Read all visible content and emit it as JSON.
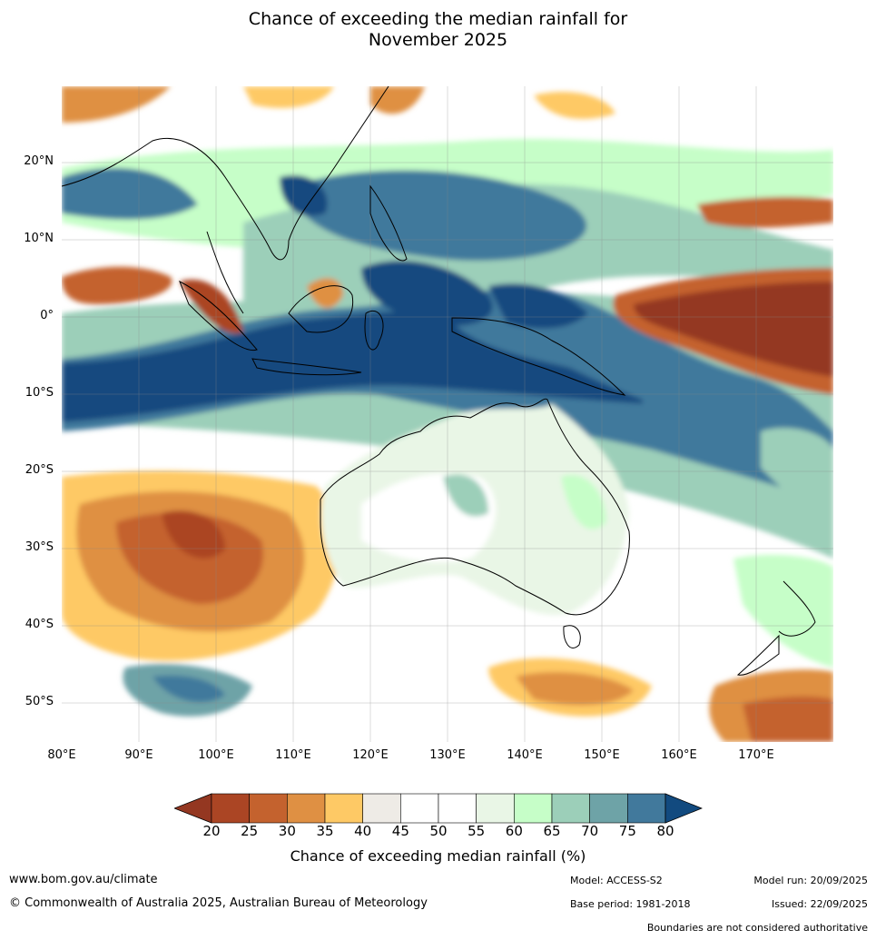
{
  "title_line1": "Chance of exceeding the median rainfall for",
  "title_line2": "November 2025",
  "lat_labels": [
    "20°N",
    "10°N",
    "0°",
    "10°S",
    "20°S",
    "30°S",
    "40°S",
    "50°S"
  ],
  "lon_labels": [
    "80°E",
    "90°E",
    "100°E",
    "110°E",
    "120°E",
    "130°E",
    "140°E",
    "150°E",
    "160°E",
    "170°E"
  ],
  "colorbar": {
    "ticks": [
      "20",
      "25",
      "30",
      "35",
      "40",
      "45",
      "50",
      "55",
      "60",
      "65",
      "70",
      "75",
      "80"
    ],
    "colors": [
      "#ab4524",
      "#c4622e",
      "#df9043",
      "#fec965",
      "#eeebe6",
      "#ffffff",
      "#ffffff",
      "#e9f6e6",
      "#c6fec8",
      "#9ccfb9",
      "#6ea3a7",
      "#41799c"
    ],
    "under_color": "#943721",
    "over_color": "#124a7f",
    "label": "Chance of exceeding median rainfall (%)"
  },
  "footer": {
    "website": "www.bom.gov.au/climate",
    "copyright": "© Commonwealth of Australia 2025, Australian Bureau of Meteorology",
    "model": "Model: ACCESS-S2",
    "base_period": "Base period: 1981-2018",
    "model_run": "Model run: 20/09/2025",
    "issued": "Issued: 22/09/2025",
    "disclaimer": "Boundaries are not considered authoritative"
  }
}
